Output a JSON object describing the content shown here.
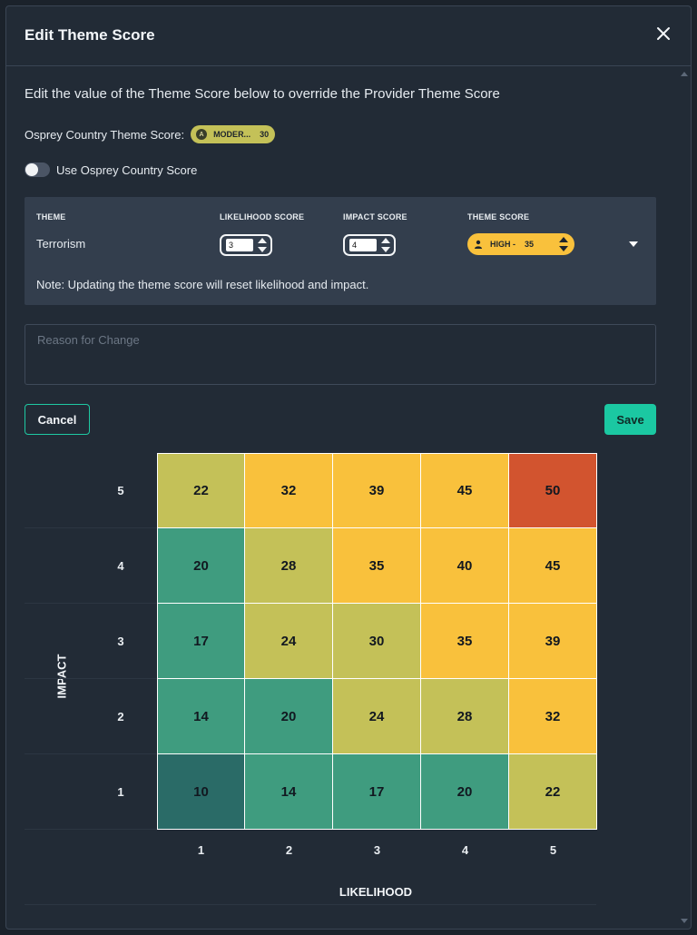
{
  "modal": {
    "title": "Edit Theme Score",
    "close_icon": "close-icon"
  },
  "intro": "Edit the value of the Theme Score below to override the Provider Theme Score",
  "osprey": {
    "label": "Osprey Country Theme Score:",
    "badge_letter": "A",
    "badge_level": "MODER...",
    "badge_value": "30",
    "badge_color": "#c4c158"
  },
  "toggle": {
    "label": "Use Osprey Country Score",
    "on": false
  },
  "theme_table": {
    "headers": [
      "THEME",
      "LIKELIHOOD SCORE",
      "IMPACT SCORE",
      "THEME SCORE"
    ],
    "theme": "Terrorism",
    "likelihood": "3",
    "impact": "4",
    "score_level": "HIGH -",
    "score_value": "35",
    "score_icon": "user-icon",
    "score_color": "#f9c13c",
    "note": "Note: Updating the theme score will reset likelihood and impact."
  },
  "reason": {
    "placeholder": "Reason for Change",
    "value": ""
  },
  "buttons": {
    "cancel": "Cancel",
    "save": "Save"
  },
  "colors": {
    "accent": "#1bc8a2",
    "low": "#2a6b67",
    "minor": "#3f9c7f",
    "moderate": "#c4c158",
    "high": "#f9c13c",
    "critical": "#d2542f"
  },
  "matrix": {
    "x_label": "LIKELIHOOD",
    "y_label": "IMPACT",
    "x_ticks": [
      "1",
      "2",
      "3",
      "4",
      "5"
    ],
    "y_ticks": [
      "5",
      "4",
      "3",
      "2",
      "1"
    ],
    "rows": [
      [
        "22",
        "32",
        "39",
        "45",
        "50"
      ],
      [
        "20",
        "28",
        "35",
        "40",
        "45"
      ],
      [
        "17",
        "24",
        "30",
        "35",
        "39"
      ],
      [
        "14",
        "20",
        "24",
        "28",
        "32"
      ],
      [
        "10",
        "14",
        "17",
        "20",
        "22"
      ]
    ],
    "levels": [
      [
        "moderate",
        "high",
        "high",
        "high",
        "critical"
      ],
      [
        "minor",
        "moderate",
        "high",
        "high",
        "high"
      ],
      [
        "minor",
        "moderate",
        "moderate",
        "high",
        "high"
      ],
      [
        "minor",
        "minor",
        "moderate",
        "moderate",
        "high"
      ],
      [
        "low",
        "minor",
        "minor",
        "minor",
        "moderate"
      ]
    ]
  }
}
